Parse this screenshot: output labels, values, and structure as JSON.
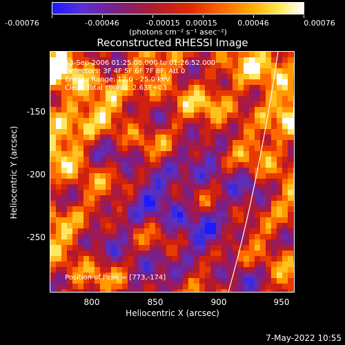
{
  "colorbar": {
    "labels": [
      "-0.00076",
      "-0.00046",
      "-0.00015",
      "0.00015",
      "0.00046",
      "0.00076"
    ],
    "units": "(photons cm⁻² s⁻¹ asec⁻²)"
  },
  "chart_data": {
    "type": "heatmap",
    "title": "Reconstructed RHESSI Image",
    "xlabel": "Heliocentric X (arcsec)",
    "ylabel": "Heliocentric Y (arcsec)",
    "xlim": [
      766,
      958
    ],
    "ylim": [
      -293,
      -104
    ],
    "xticks": [
      "800",
      "850",
      "900",
      "950"
    ],
    "xtick_values": [
      800,
      850,
      900,
      950
    ],
    "yticks": [
      "-150",
      "-200",
      "-250"
    ],
    "ytick_values": [
      -150,
      -200,
      -250
    ],
    "zlim": [
      -0.00076,
      0.00076
    ],
    "colormap": "blue-purple-red-yellow-white",
    "annotations": [
      "13-Sep-2006 01:25:08.000 to 01:26:52.000",
      "Detectors: 3F 4F 5F 6F 7F 8F, Att 0",
      "Energy Range: 12.0 - 25.0 keV",
      "Clean     Total counts: 2.63E+03"
    ],
    "peak_label": "Position of Peak = [773,-174]",
    "limb_color": "#ffffff"
  },
  "timestamp": "7-May-2022 10:55"
}
